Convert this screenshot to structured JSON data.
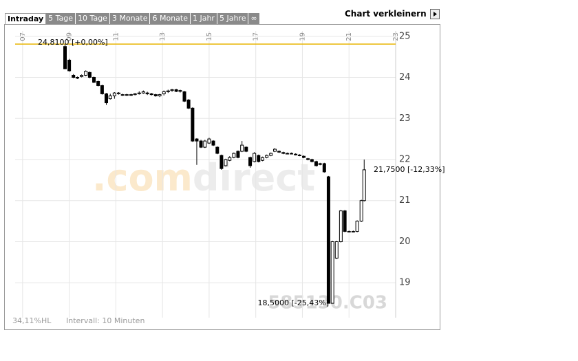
{
  "ui": {
    "tabs": [
      "Intraday",
      "5 Tage",
      "10 Tage",
      "3 Monate",
      "6 Monate",
      "1 Jahr",
      "5 Jahre",
      "∞"
    ],
    "shrink": "Chart verkleinern"
  },
  "chart_data": {
    "type": "candlestick",
    "watermark": [
      ".com",
      "direct"
    ],
    "code": "585130.C03",
    "footer": [
      "34,11%HL",
      "Intervall: 10 Minuten"
    ],
    "xlim": [
      6.68,
      23
    ],
    "ylim": [
      18.15,
      25.13
    ],
    "xticks": [
      {
        "value": 7,
        "label": "07"
      },
      {
        "value": 9,
        "label": "09"
      },
      {
        "value": 11,
        "label": "11"
      },
      {
        "value": 13,
        "label": "13"
      },
      {
        "value": 15,
        "label": "15"
      },
      {
        "value": 17,
        "label": "17"
      },
      {
        "value": 19,
        "label": "19"
      },
      {
        "value": 21,
        "label": "21"
      },
      {
        "value": 23,
        "label": "23"
      }
    ],
    "yticks": [
      19,
      20,
      21,
      22,
      23,
      24,
      25
    ],
    "grid": true,
    "reference": {
      "value": 24.81,
      "color": "#e8b400"
    },
    "annotations": [
      {
        "text": "24,8100 [+0,00%]",
        "value": 24.81
      },
      {
        "text": "21,7500 [-12,33%]",
        "value": 21.75
      },
      {
        "text": "18,5000 [-25,43%]",
        "value": 18.5
      }
    ],
    "x": [
      8.82,
      9.0,
      9.18,
      9.35,
      9.53,
      9.71,
      9.88,
      10.06,
      10.24,
      10.41,
      10.59,
      10.76,
      10.94,
      11.12,
      11.29,
      11.47,
      11.65,
      11.82,
      12.0,
      12.18,
      12.35,
      12.53,
      12.71,
      12.88,
      13.06,
      13.24,
      13.41,
      13.59,
      13.76,
      13.94,
      14.12,
      14.29,
      14.47,
      14.65,
      14.82,
      15.0,
      15.18,
      15.35,
      15.53,
      15.71,
      15.88,
      16.06,
      16.24,
      16.41,
      16.59,
      16.76,
      16.94,
      17.12,
      17.29,
      17.47,
      17.65,
      17.82,
      18.0,
      18.18,
      18.35,
      18.53,
      18.71,
      18.88,
      19.06,
      19.24,
      19.41,
      19.59,
      19.76,
      19.94,
      20.12,
      20.29,
      20.47,
      20.65,
      20.82,
      21.0,
      21.18,
      21.35,
      21.53,
      21.65
    ],
    "open": [
      24.75,
      24.42,
      24.05,
      24.0,
      24.02,
      24.05,
      24.12,
      24.0,
      23.9,
      23.8,
      23.6,
      23.48,
      23.55,
      23.6,
      23.58,
      23.58,
      23.57,
      23.58,
      23.6,
      23.62,
      23.62,
      23.6,
      23.58,
      23.55,
      23.6,
      23.65,
      23.68,
      23.7,
      23.68,
      23.65,
      23.45,
      23.25,
      22.5,
      22.45,
      22.3,
      22.4,
      22.45,
      22.3,
      22.1,
      21.85,
      21.98,
      22.05,
      22.2,
      22.2,
      22.3,
      22.05,
      21.95,
      22.1,
      21.98,
      22.05,
      22.1,
      22.2,
      22.2,
      22.17,
      22.15,
      22.15,
      22.13,
      22.11,
      22.08,
      22.02,
      22.0,
      21.95,
      21.9,
      21.9,
      21.58,
      18.5,
      19.6,
      20.0,
      20.75,
      20.25,
      20.25,
      20.25,
      20.5,
      21.0
    ],
    "high": [
      24.81,
      24.45,
      24.08,
      24.02,
      24.07,
      24.17,
      24.14,
      24.02,
      23.92,
      23.82,
      23.62,
      23.6,
      23.64,
      23.64,
      23.6,
      23.6,
      23.6,
      23.62,
      23.66,
      23.68,
      23.65,
      23.62,
      23.6,
      23.6,
      23.68,
      23.7,
      23.72,
      23.72,
      23.7,
      23.67,
      23.47,
      23.27,
      22.52,
      22.48,
      22.48,
      22.53,
      22.47,
      22.32,
      22.12,
      22.02,
      22.08,
      22.17,
      22.22,
      22.45,
      22.32,
      22.07,
      22.18,
      22.12,
      22.07,
      22.12,
      22.17,
      22.28,
      22.22,
      22.19,
      22.17,
      22.17,
      22.15,
      22.13,
      22.1,
      22.04,
      22.02,
      21.97,
      21.92,
      21.92,
      21.6,
      20.02,
      20.02,
      20.77,
      20.77,
      20.27,
      20.27,
      20.52,
      21.02,
      22.0
    ],
    "low": [
      24.2,
      24.14,
      23.98,
      23.96,
      24.0,
      24.03,
      23.98,
      23.86,
      23.78,
      23.58,
      23.33,
      23.46,
      23.48,
      23.58,
      23.55,
      23.55,
      23.55,
      23.56,
      23.58,
      23.6,
      23.57,
      23.56,
      23.53,
      23.52,
      23.56,
      23.62,
      23.65,
      23.64,
      23.63,
      23.4,
      23.23,
      22.43,
      21.87,
      22.28,
      22.28,
      22.38,
      22.33,
      22.13,
      21.75,
      21.83,
      21.96,
      22.03,
      22.03,
      22.18,
      22.18,
      21.8,
      21.93,
      21.93,
      21.96,
      22.03,
      22.08,
      22.18,
      22.16,
      22.13,
      22.13,
      22.13,
      22.1,
      22.08,
      22.03,
      21.98,
      21.93,
      21.83,
      21.86,
      21.68,
      18.5,
      18.5,
      19.58,
      19.98,
      20.23,
      20.23,
      20.23,
      20.23,
      20.48,
      20.98
    ],
    "close": [
      24.21,
      24.16,
      24.0,
      23.98,
      24.05,
      24.15,
      24.0,
      23.88,
      23.8,
      23.6,
      23.38,
      23.55,
      23.62,
      23.62,
      23.58,
      23.58,
      23.58,
      23.6,
      23.62,
      23.65,
      23.6,
      23.58,
      23.55,
      23.58,
      23.65,
      23.67,
      23.7,
      23.66,
      23.66,
      23.42,
      23.25,
      22.45,
      22.45,
      22.3,
      22.45,
      22.5,
      22.35,
      22.15,
      21.78,
      22.0,
      22.05,
      22.15,
      22.05,
      22.35,
      22.2,
      21.85,
      22.15,
      21.95,
      22.05,
      22.1,
      22.15,
      22.25,
      22.18,
      22.15,
      22.15,
      22.15,
      22.12,
      22.1,
      22.05,
      22.0,
      21.95,
      21.85,
      21.88,
      21.7,
      18.5,
      20.0,
      20.0,
      20.75,
      20.25,
      20.25,
      20.25,
      20.5,
      21.0,
      21.75
    ],
    "up_color": "#ffffff",
    "down_color": "#000000"
  }
}
